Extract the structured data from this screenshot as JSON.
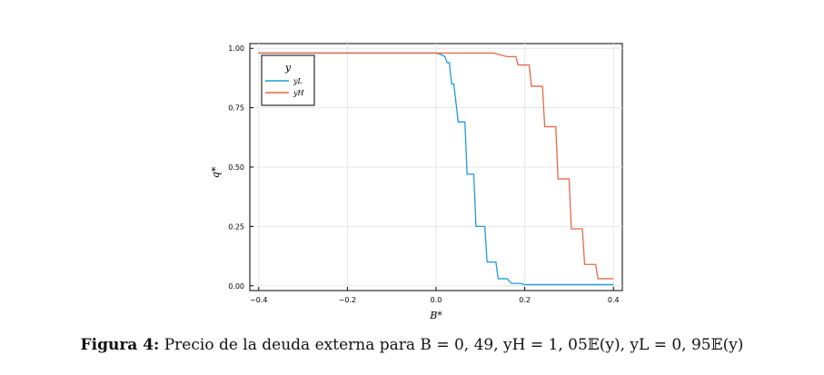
{
  "caption": {
    "label": "Figura 4:",
    "text": "Precio de la deuda externa para B = 0, 49, yH = 1, 05𝔼(y), yL = 0, 95𝔼(y)"
  },
  "chart_data": {
    "type": "line",
    "xlabel": "B*",
    "ylabel": "q*",
    "xlim": [
      -0.42,
      0.42
    ],
    "ylim": [
      -0.02,
      1.02
    ],
    "xticks": [
      -0.4,
      -0.2,
      0.0,
      0.2,
      0.4
    ],
    "xtick_labels": [
      "−0.4",
      "−0.2",
      "0.0",
      "0.2",
      "0.4"
    ],
    "yticks": [
      0.0,
      0.25,
      0.5,
      0.75,
      1.0
    ],
    "ytick_labels": [
      "0.00",
      "0.25",
      "0.50",
      "0.75",
      "1.00"
    ],
    "grid": true,
    "legend_title": "y",
    "legend_placement": "top-left",
    "series": [
      {
        "name": "yL",
        "color": "#1f9bd8",
        "x": [
          -0.4,
          0.0,
          0.01,
          0.02,
          0.025,
          0.03,
          0.035,
          0.04,
          0.05,
          0.06,
          0.065,
          0.07,
          0.085,
          0.09,
          0.1,
          0.11,
          0.115,
          0.12,
          0.135,
          0.14,
          0.16,
          0.17,
          0.19,
          0.2,
          0.22,
          0.4
        ],
        "y": [
          0.98,
          0.98,
          0.975,
          0.965,
          0.94,
          0.94,
          0.85,
          0.85,
          0.69,
          0.69,
          0.69,
          0.47,
          0.47,
          0.25,
          0.25,
          0.25,
          0.1,
          0.1,
          0.1,
          0.03,
          0.03,
          0.01,
          0.01,
          0.005,
          0.005,
          0.005
        ]
      },
      {
        "name": "yH",
        "color": "#e8694a",
        "x": [
          -0.4,
          0.13,
          0.14,
          0.16,
          0.18,
          0.185,
          0.21,
          0.215,
          0.24,
          0.245,
          0.27,
          0.275,
          0.3,
          0.305,
          0.33,
          0.335,
          0.36,
          0.365,
          0.39,
          0.4
        ],
        "y": [
          0.98,
          0.98,
          0.975,
          0.965,
          0.965,
          0.93,
          0.93,
          0.84,
          0.84,
          0.67,
          0.67,
          0.45,
          0.45,
          0.24,
          0.24,
          0.09,
          0.09,
          0.03,
          0.03,
          0.03
        ]
      }
    ]
  }
}
